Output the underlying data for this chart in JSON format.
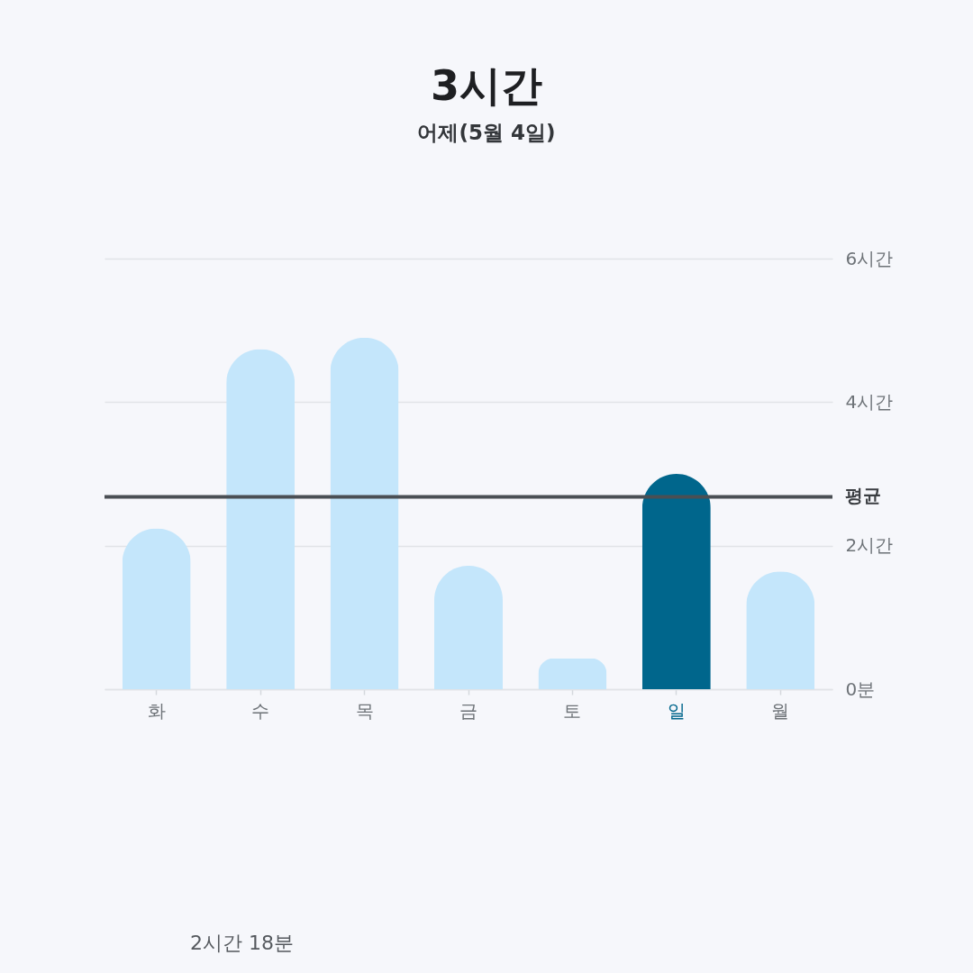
{
  "chart_data": {
    "type": "bar",
    "title": "3시간",
    "subtitle": "어제(5월 4일)",
    "categories": [
      "화",
      "수",
      "목",
      "금",
      "토",
      "일",
      "월"
    ],
    "values": [
      2.24,
      4.74,
      4.9,
      1.72,
      0.43,
      3.0,
      1.64
    ],
    "colors": [
      "#c4e6fb",
      "#c4e6fb",
      "#c4e6fb",
      "#c4e6fb",
      "#c4e6fb",
      "#00668c",
      "#c4e6fb"
    ],
    "ylim": [
      0,
      6
    ],
    "yticks": [
      {
        "value": 0,
        "label": "0분"
      },
      {
        "value": 2,
        "label": "2시간"
      },
      {
        "value": 4,
        "label": "4시간"
      },
      {
        "value": 6,
        "label": "6시간"
      }
    ],
    "grid": "y",
    "ref_lines": [
      {
        "axis": "y",
        "value": 2.68,
        "label": "평균",
        "color": "#4a4f54",
        "line_style": "solid"
      }
    ],
    "annotations": [
      "2시간 18분"
    ]
  }
}
